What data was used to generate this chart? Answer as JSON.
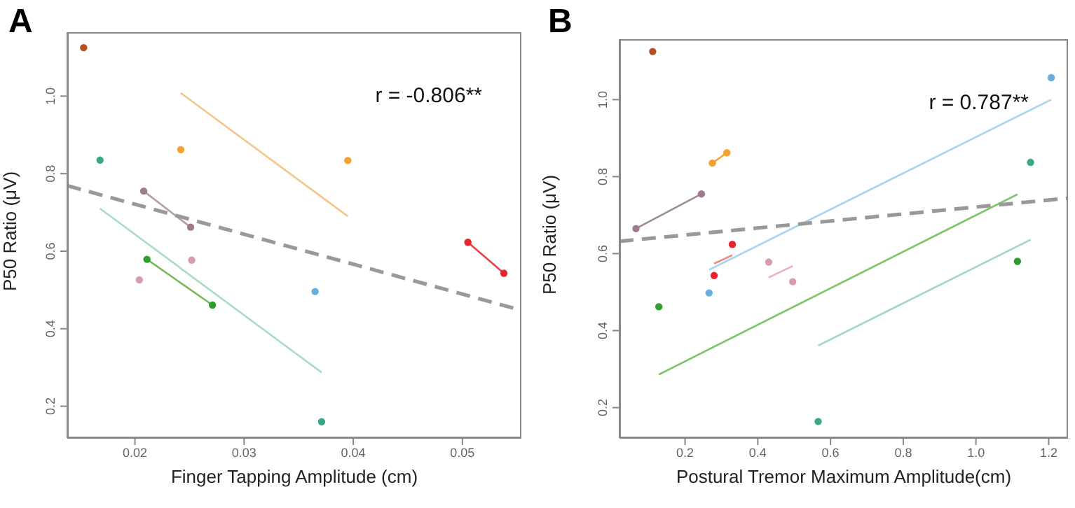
{
  "chart_data": [
    {
      "type": "scatter",
      "title": "A",
      "xlabel": "Finger Tapping Amplitude (cm)",
      "ylabel": "P50 Ratio (μV)",
      "xlim": [
        0.0138,
        0.0554
      ],
      "ylim": [
        0.118,
        1.165
      ],
      "xticks": [
        0.02,
        0.03,
        0.04,
        0.05
      ],
      "yticks": [
        0.2,
        0.4,
        0.6,
        0.8,
        {
          "value": 1,
          "label": "1.0"
        }
      ],
      "marker": "circle",
      "annotations": [
        "r = -0.806**"
      ],
      "series": [
        {
          "type": "line",
          "marker": "none",
          "color": "#f7c48a",
          "x": [
            0.0242,
            0.0395
          ],
          "values": [
            1.008,
            0.69
          ]
        },
        {
          "type": "line",
          "marker": "none",
          "color": "#a9dcc6",
          "x": [
            0.0168,
            0.0371
          ],
          "values": [
            0.71,
            0.287
          ]
        },
        {
          "type": "line",
          "marker": "none",
          "color": "#b89aae",
          "x": [
            0.0208,
            0.0251
          ],
          "values": [
            0.755,
            0.662
          ]
        },
        {
          "type": "line",
          "marker": "none",
          "color": "#78b85a",
          "x": [
            0.0211,
            0.0271
          ],
          "values": [
            0.579,
            0.461
          ]
        },
        {
          "type": "line",
          "marker": "none",
          "color": "#e8424a",
          "x": [
            0.0505,
            0.0538
          ],
          "values": [
            0.623,
            0.543
          ]
        },
        {
          "type": "line",
          "marker": "none",
          "color": "#999999",
          "line_style": "dashed",
          "x": [
            0.0138,
            0.0552
          ],
          "values": [
            0.769,
            0.449
          ]
        },
        {
          "color": "#b5501f",
          "x": [
            0.0153
          ],
          "values": [
            1.125
          ]
        },
        {
          "color": "#3aa68a",
          "x": [
            0.0168,
            0.0371
          ],
          "values": [
            0.835,
            0.16
          ]
        },
        {
          "color": "#f5a030",
          "x": [
            0.0242,
            0.0395
          ],
          "values": [
            0.862,
            0.834
          ]
        },
        {
          "color": "#9e7a8e",
          "x": [
            0.0208,
            0.0251
          ],
          "values": [
            0.755,
            0.662
          ]
        },
        {
          "color": "#d89ab5",
          "x": [
            0.0252,
            0.0204
          ],
          "values": [
            0.577,
            0.526
          ]
        },
        {
          "color": "#2e9e2e",
          "x": [
            0.0211,
            0.0271
          ],
          "values": [
            0.579,
            0.461
          ]
        },
        {
          "color": "#6aaee0",
          "x": [
            0.0365
          ],
          "values": [
            0.496
          ]
        },
        {
          "color": "#e8222e",
          "x": [
            0.0505,
            0.0538
          ],
          "values": [
            0.623,
            0.543
          ]
        }
      ]
    },
    {
      "type": "scatter",
      "title": "B",
      "xlabel": "Postural Tremor Maximum Amplitude(cm)",
      "ylabel": "P50 Ratio (μV)",
      "xlim": [
        0.0197,
        1.253
      ],
      "ylim": [
        0.121,
        1.157
      ],
      "xticks": [
        0.2,
        0.4,
        0.6,
        0.8,
        {
          "value": 1,
          "label": "1.0"
        },
        1.2
      ],
      "yticks": [
        0.2,
        0.4,
        0.6,
        0.8,
        {
          "value": 1,
          "label": "1.0"
        }
      ],
      "marker": "circle",
      "annotations": [
        "r = 0.787**"
      ],
      "series": [
        {
          "type": "line",
          "marker": "none",
          "color": "#a8d4ee",
          "x": [
            0.266,
            1.207
          ],
          "values": [
            0.558,
            1.0
          ]
        },
        {
          "type": "line",
          "marker": "none",
          "color": "#80c46a",
          "x": [
            0.128,
            1.114
          ],
          "values": [
            0.286,
            0.754
          ]
        },
        {
          "type": "line",
          "marker": "none",
          "color": "#9fd8c0",
          "x": [
            0.566,
            1.15
          ],
          "values": [
            0.361,
            0.636
          ]
        },
        {
          "type": "line",
          "marker": "none",
          "color": "#a08a98",
          "x": [
            0.065,
            0.245
          ],
          "values": [
            0.665,
            0.755
          ]
        },
        {
          "type": "line",
          "marker": "none",
          "color": "#f5a030",
          "x": [
            0.275,
            0.315
          ],
          "values": [
            0.835,
            0.862
          ]
        },
        {
          "type": "line",
          "marker": "none",
          "color": "#f08a8a",
          "x": [
            0.28,
            0.33
          ],
          "values": [
            0.574,
            0.596
          ]
        },
        {
          "type": "line",
          "marker": "none",
          "color": "#e8b0c4",
          "x": [
            0.43,
            0.496
          ],
          "values": [
            0.538,
            0.568
          ]
        },
        {
          "type": "line",
          "marker": "none",
          "color": "#999999",
          "line_style": "dashed",
          "x": [
            0.0197,
            1.253
          ],
          "values": [
            0.632,
            0.744
          ]
        },
        {
          "color": "#b5501f",
          "x": [
            0.111
          ],
          "values": [
            1.125
          ]
        },
        {
          "color": "#6aaee0",
          "x": [
            1.207,
            0.266
          ],
          "values": [
            1.057,
            0.498
          ]
        },
        {
          "color": "#f5a030",
          "x": [
            0.275,
            0.315
          ],
          "values": [
            0.835,
            0.862
          ]
        },
        {
          "color": "#3aa68a",
          "x": [
            1.15,
            0.566
          ],
          "values": [
            0.837,
            0.164
          ]
        },
        {
          "color": "#9e7a8e",
          "x": [
            0.065,
            0.245
          ],
          "values": [
            0.665,
            0.755
          ]
        },
        {
          "color": "#e8222e",
          "x": [
            0.33,
            0.28
          ],
          "values": [
            0.624,
            0.543
          ]
        },
        {
          "color": "#d89ab5",
          "x": [
            0.43,
            0.496
          ],
          "values": [
            0.578,
            0.527
          ]
        },
        {
          "color": "#2e9e2e",
          "x": [
            1.114,
            0.128
          ],
          "values": [
            0.58,
            0.462
          ]
        }
      ]
    }
  ]
}
